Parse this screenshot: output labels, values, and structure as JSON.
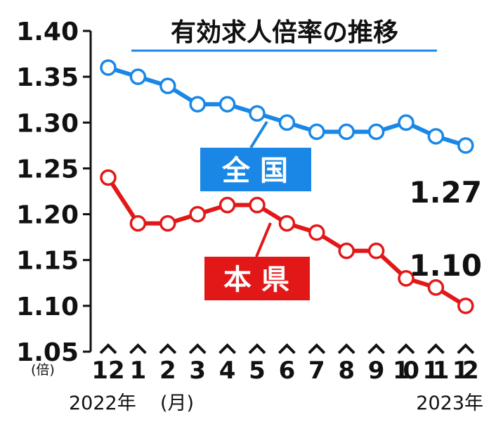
{
  "chart_data": {
    "type": "line",
    "title": "有効求人倍率の推移",
    "unit_label": "(倍)",
    "month_label": "(月)",
    "start_year_label": "2022年",
    "end_year_label": "2023年",
    "categories": [
      "12",
      "1",
      "2",
      "3",
      "4",
      "5",
      "6",
      "7",
      "8",
      "9",
      "10",
      "11",
      "12"
    ],
    "ylim": [
      1.05,
      1.4
    ],
    "yticks": [
      "1.05",
      "1.10",
      "1.15",
      "1.20",
      "1.25",
      "1.30",
      "1.35",
      "1.40"
    ],
    "grid": false,
    "series": [
      {
        "name": "全国",
        "color": "#1a87e6",
        "values": [
          1.36,
          1.35,
          1.34,
          1.32,
          1.32,
          1.31,
          1.3,
          1.29,
          1.29,
          1.29,
          1.3,
          1.285,
          1.275
        ],
        "end_label": "1.27"
      },
      {
        "name": "本県",
        "color": "#e21818",
        "values": [
          1.24,
          1.19,
          1.19,
          1.2,
          1.21,
          1.21,
          1.19,
          1.18,
          1.16,
          1.16,
          1.13,
          1.12,
          1.1
        ],
        "end_label": "1.10"
      }
    ]
  }
}
